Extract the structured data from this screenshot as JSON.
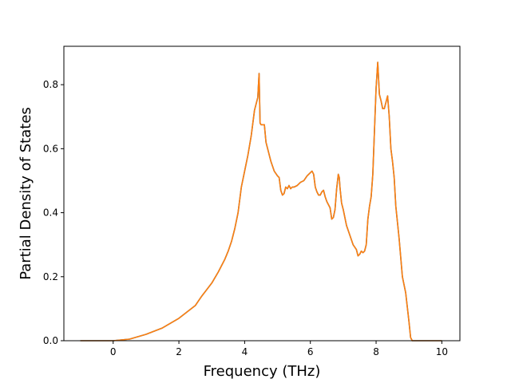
{
  "chart_data": {
    "type": "line",
    "title": "",
    "xlabel": "Frequency (THz)",
    "ylabel": "Partial Density of States",
    "xlim": [
      -1.5,
      10.55
    ],
    "ylim": [
      0.0,
      0.92
    ],
    "xticks": [
      0,
      2,
      4,
      6,
      8,
      10
    ],
    "yticks": [
      0.0,
      0.2,
      0.4,
      0.6,
      0.8
    ],
    "xtick_labels": [
      "0",
      "2",
      "4",
      "6",
      "8",
      "10"
    ],
    "ytick_labels": [
      "0.0",
      "0.2",
      "0.4",
      "0.6",
      "0.8"
    ],
    "grid": false,
    "legend": "none",
    "colors": [
      "#1f77b4",
      "#ff7f0e"
    ],
    "series": [
      {
        "x": [
          -1.0,
          -0.5,
          0.0,
          0.5,
          1.0,
          1.5,
          2.0,
          2.5,
          2.6,
          2.7,
          3.0,
          3.2,
          3.4,
          3.5,
          3.6,
          3.7,
          3.8,
          3.9,
          4.0,
          4.1,
          4.2,
          4.25,
          4.3,
          4.35,
          4.4,
          4.44,
          4.47,
          4.5,
          4.55,
          4.6,
          4.65,
          4.7,
          4.8,
          4.9,
          5.0,
          5.05,
          5.1,
          5.15,
          5.2,
          5.25,
          5.3,
          5.35,
          5.4,
          5.45,
          5.5,
          5.6,
          5.7,
          5.8,
          5.9,
          6.0,
          6.05,
          6.1,
          6.15,
          6.2,
          6.25,
          6.3,
          6.35,
          6.4,
          6.45,
          6.5,
          6.55,
          6.6,
          6.65,
          6.7,
          6.75,
          6.8,
          6.85,
          6.88,
          6.9,
          6.95,
          7.0,
          7.1,
          7.2,
          7.3,
          7.4,
          7.45,
          7.5,
          7.55,
          7.6,
          7.65,
          7.7,
          7.75,
          7.8,
          7.85,
          7.9,
          8.0,
          8.05,
          8.1,
          8.15,
          8.2,
          8.25,
          8.3,
          8.35,
          8.4,
          8.45,
          8.5,
          8.55,
          8.6,
          8.65,
          8.7,
          8.75,
          8.8,
          8.9,
          9.0,
          9.05,
          9.1,
          9.15,
          9.2,
          10.0
        ],
        "y": [
          0.0,
          0.0,
          0.0,
          0.005,
          0.02,
          0.04,
          0.07,
          0.11,
          0.125,
          0.14,
          0.18,
          0.215,
          0.255,
          0.28,
          0.31,
          0.35,
          0.4,
          0.48,
          0.53,
          0.58,
          0.64,
          0.68,
          0.72,
          0.74,
          0.76,
          0.835,
          0.68,
          0.675,
          0.675,
          0.675,
          0.62,
          0.6,
          0.56,
          0.53,
          0.515,
          0.51,
          0.47,
          0.455,
          0.46,
          0.48,
          0.475,
          0.485,
          0.475,
          0.48,
          0.48,
          0.485,
          0.495,
          0.5,
          0.515,
          0.525,
          0.53,
          0.52,
          0.48,
          0.465,
          0.455,
          0.455,
          0.465,
          0.47,
          0.45,
          0.435,
          0.425,
          0.415,
          0.38,
          0.385,
          0.41,
          0.475,
          0.52,
          0.51,
          0.48,
          0.43,
          0.41,
          0.36,
          0.33,
          0.3,
          0.285,
          0.265,
          0.27,
          0.28,
          0.275,
          0.28,
          0.3,
          0.38,
          0.42,
          0.45,
          0.52,
          0.79,
          0.87,
          0.77,
          0.75,
          0.725,
          0.725,
          0.745,
          0.765,
          0.7,
          0.6,
          0.56,
          0.51,
          0.42,
          0.37,
          0.32,
          0.26,
          0.2,
          0.15,
          0.06,
          0.01,
          0.0,
          0.0,
          0.0,
          0.0
        ]
      },
      {
        "x": [
          -1.0,
          -0.5,
          0.0,
          0.5,
          1.0,
          1.5,
          2.0,
          2.5,
          2.6,
          2.7,
          3.0,
          3.2,
          3.4,
          3.5,
          3.6,
          3.7,
          3.8,
          3.9,
          4.0,
          4.1,
          4.2,
          4.25,
          4.3,
          4.35,
          4.4,
          4.44,
          4.47,
          4.5,
          4.55,
          4.6,
          4.65,
          4.7,
          4.8,
          4.9,
          5.0,
          5.05,
          5.1,
          5.15,
          5.2,
          5.25,
          5.3,
          5.35,
          5.4,
          5.45,
          5.5,
          5.6,
          5.7,
          5.8,
          5.9,
          6.0,
          6.05,
          6.1,
          6.15,
          6.2,
          6.25,
          6.3,
          6.35,
          6.4,
          6.45,
          6.5,
          6.55,
          6.6,
          6.65,
          6.7,
          6.75,
          6.8,
          6.85,
          6.88,
          6.9,
          6.95,
          7.0,
          7.1,
          7.2,
          7.3,
          7.4,
          7.45,
          7.5,
          7.55,
          7.6,
          7.65,
          7.7,
          7.75,
          7.8,
          7.85,
          7.9,
          8.0,
          8.05,
          8.1,
          8.15,
          8.2,
          8.25,
          8.3,
          8.35,
          8.4,
          8.45,
          8.5,
          8.55,
          8.6,
          8.65,
          8.7,
          8.75,
          8.8,
          8.9,
          9.0,
          9.05,
          9.1,
          9.15,
          9.2,
          10.0
        ],
        "y": [
          0.0,
          0.0,
          0.0,
          0.005,
          0.02,
          0.04,
          0.07,
          0.11,
          0.125,
          0.14,
          0.18,
          0.215,
          0.255,
          0.28,
          0.31,
          0.35,
          0.4,
          0.48,
          0.53,
          0.58,
          0.64,
          0.68,
          0.72,
          0.74,
          0.76,
          0.835,
          0.68,
          0.675,
          0.675,
          0.675,
          0.62,
          0.6,
          0.56,
          0.53,
          0.515,
          0.51,
          0.47,
          0.455,
          0.46,
          0.48,
          0.475,
          0.485,
          0.475,
          0.48,
          0.48,
          0.485,
          0.495,
          0.5,
          0.515,
          0.525,
          0.53,
          0.52,
          0.48,
          0.465,
          0.455,
          0.455,
          0.465,
          0.47,
          0.45,
          0.435,
          0.425,
          0.415,
          0.38,
          0.385,
          0.41,
          0.475,
          0.52,
          0.51,
          0.48,
          0.43,
          0.41,
          0.36,
          0.33,
          0.3,
          0.285,
          0.265,
          0.27,
          0.28,
          0.275,
          0.28,
          0.3,
          0.38,
          0.42,
          0.45,
          0.52,
          0.79,
          0.87,
          0.77,
          0.75,
          0.725,
          0.725,
          0.745,
          0.765,
          0.7,
          0.6,
          0.56,
          0.51,
          0.42,
          0.37,
          0.32,
          0.26,
          0.2,
          0.15,
          0.06,
          0.01,
          0.0,
          0.0,
          0.0,
          0.0
        ]
      }
    ]
  }
}
